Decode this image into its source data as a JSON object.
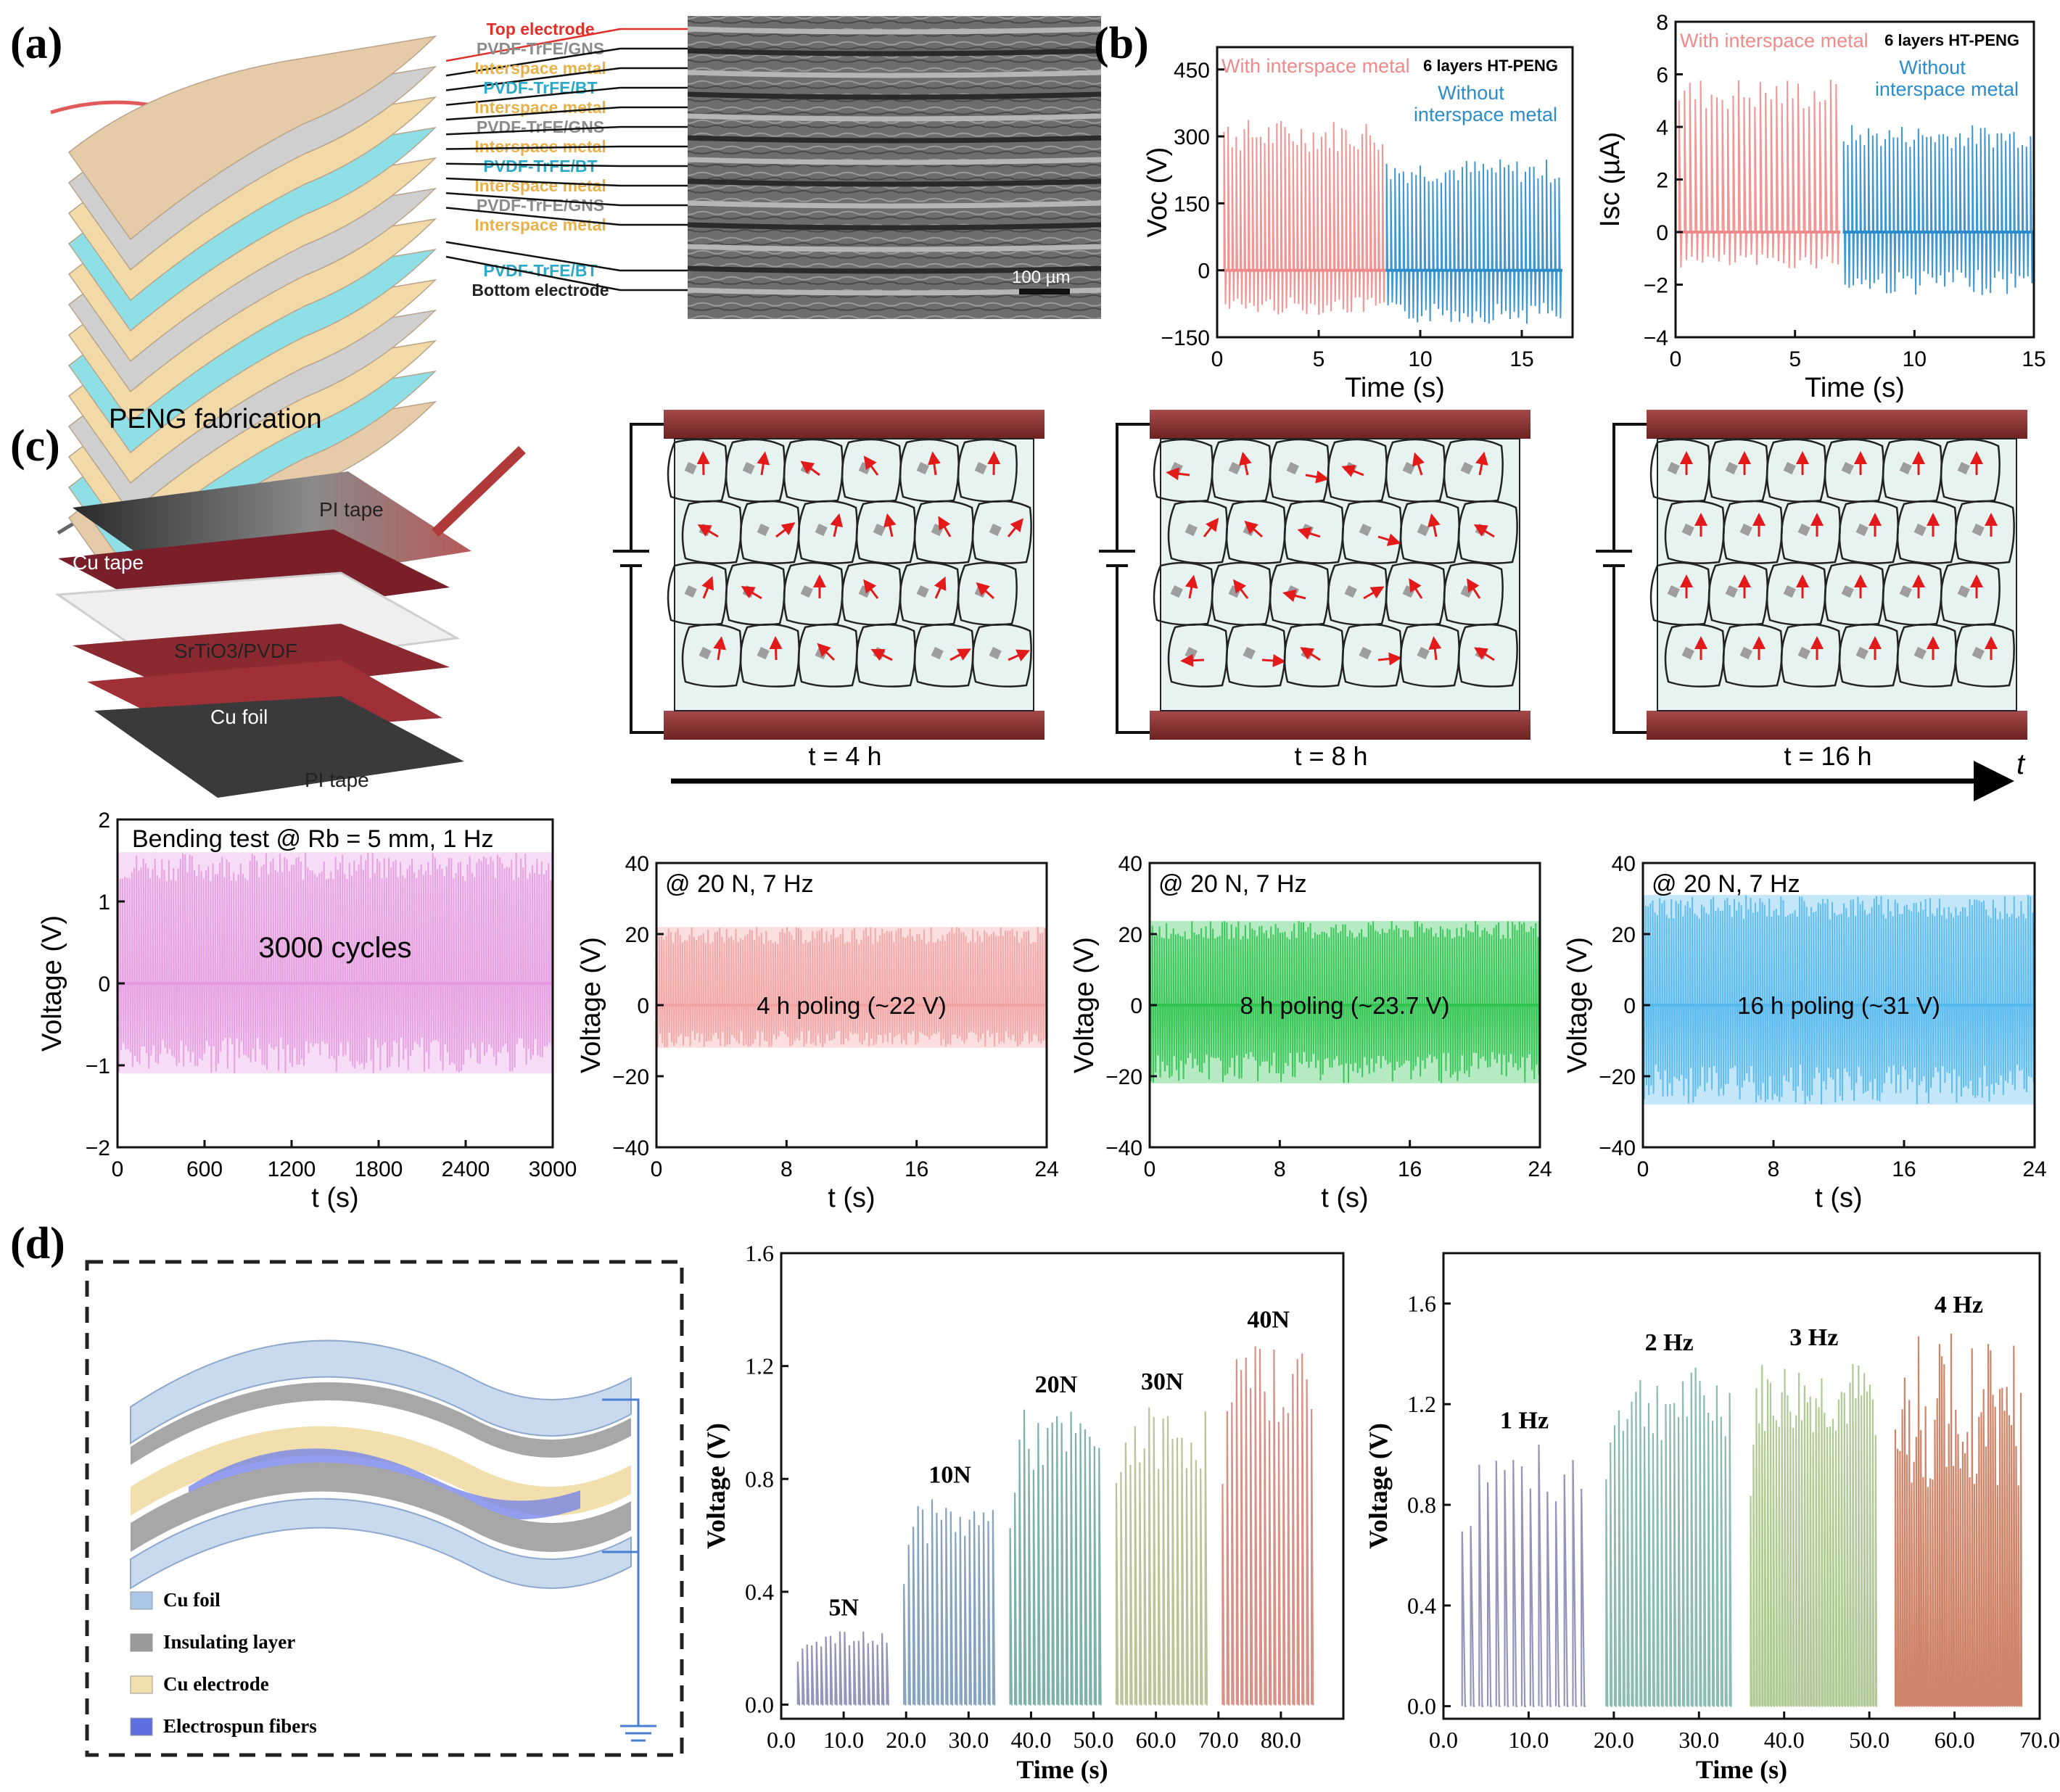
{
  "panels": {
    "a": {
      "tag": "(a)",
      "caption": "PENG fabrication",
      "layers": [
        {
          "text": "Top electrode",
          "color": "#e0302a"
        },
        {
          "text": "PVDF-TrFE/GNS",
          "color": "#8c8c8c"
        },
        {
          "text": "Interspace metal",
          "color": "#e8b24a"
        },
        {
          "text": "PVDF-TrFE/BT",
          "color": "#2aa9c9"
        },
        {
          "text": "Interspace metal",
          "color": "#e8b24a"
        },
        {
          "text": "PVDF-TrFE/GNS",
          "color": "#8c8c8c"
        },
        {
          "text": "Interspace metal",
          "color": "#e8b24a"
        },
        {
          "text": "PVDF-TrFE/BT",
          "color": "#2aa9c9"
        },
        {
          "text": "Interspace metal",
          "color": "#e8b24a"
        },
        {
          "text": "PVDF-TrFE/GNS",
          "color": "#8c8c8c"
        },
        {
          "text": "Interspace metal",
          "color": "#e8b24a"
        },
        {
          "text": "PVDF-TrFE/BT",
          "color": "#2aa9c9"
        },
        {
          "text": "Bottom electrode",
          "color": "#222222"
        }
      ],
      "scale_bar": "100 µm"
    },
    "b": {
      "tag": "(b)"
    },
    "c": {
      "tag": "(c)",
      "device_labels": [
        "PI tape",
        "Cu tape",
        "SrTiO3/PVDF",
        "Cu foil",
        "PI tape"
      ],
      "poling_times": [
        "t = 4 h",
        "t = 8 h",
        "t = 16 h"
      ],
      "time_axis": "t"
    },
    "d": {
      "tag": "(d)",
      "legend": [
        "Cu foil",
        "Insulating layer",
        "Cu electrode",
        "Electrospun fibers"
      ],
      "legend_colors": [
        "#a9c6e8",
        "#9a9a9a",
        "#f1dfae",
        "#5f6fe0"
      ]
    }
  },
  "chart_data": [
    {
      "id": "b1",
      "type": "line",
      "title": "6 layers HT-PENG",
      "xlabel": "Time (s)",
      "ylabel": "Voc (V)",
      "xlim": [
        0,
        17.5
      ],
      "ylim": [
        -150,
        500
      ],
      "xticks": [
        0,
        5,
        10,
        15
      ],
      "yticks": [
        -150,
        0,
        150,
        300,
        450
      ],
      "series": [
        {
          "name": "With interspace metal",
          "color": "#f08a8a",
          "t_start": 0.3,
          "t_end": 8.3,
          "peak_max": 340,
          "peak_min": -100,
          "cycles": 40
        },
        {
          "name": "Without interspace metal",
          "color": "#2b8ccc",
          "t_start": 8.3,
          "t_end": 17,
          "peak_max": 250,
          "peak_min": -120,
          "cycles": 42
        }
      ],
      "annotations": [
        "With interspace metal",
        "Without",
        "interspace metal"
      ]
    },
    {
      "id": "b2",
      "type": "line",
      "title": "6 layers HT-PENG",
      "xlabel": "Time (s)",
      "ylabel": "Isc (µA)",
      "xlim": [
        0,
        15
      ],
      "ylim": [
        -4,
        8
      ],
      "xticks": [
        0,
        5,
        10,
        15
      ],
      "yticks": [
        -4,
        -2,
        0,
        2,
        4,
        6,
        8
      ],
      "series": [
        {
          "name": "With interspace metal",
          "color": "#f08a8a",
          "t_start": 0.1,
          "t_end": 6.9,
          "peak_max": 5.9,
          "peak_min": -1.4,
          "cycles": 30
        },
        {
          "name": "Without interspace metal",
          "color": "#2b8ccc",
          "t_start": 7.0,
          "t_end": 15,
          "peak_max": 4.1,
          "peak_min": -2.4,
          "cycles": 46
        }
      ],
      "annotations": [
        "With interspace metal",
        "Without",
        "interspace metal"
      ]
    },
    {
      "id": "c1",
      "type": "line",
      "title": "Bending test @ Rb = 5 mm, 1 Hz",
      "xlabel": "t (s)",
      "ylabel": "Voltage (V)",
      "xlim": [
        0,
        3000
      ],
      "ylim": [
        -2,
        2
      ],
      "xticks": [
        0,
        600,
        1200,
        1800,
        2400,
        3000
      ],
      "yticks": [
        -2,
        -1,
        0,
        1,
        2
      ],
      "series": [
        {
          "name": "3000 cycles",
          "color": "#e69be0",
          "t_start": 0,
          "t_end": 3000,
          "peak_max": 1.6,
          "peak_min": -1.1,
          "cycles": 3000
        }
      ],
      "annotations": [
        "3000 cycles"
      ]
    },
    {
      "id": "c2",
      "type": "line",
      "title": "@ 20 N, 7 Hz",
      "xlabel": "t (s)",
      "ylabel": "Voltage (V)",
      "xlim": [
        0,
        24
      ],
      "ylim": [
        -40,
        40
      ],
      "xticks": [
        0,
        8,
        16,
        24
      ],
      "yticks": [
        -40,
        -20,
        0,
        20,
        40
      ],
      "series": [
        {
          "name": "4 h poling (~22 V)",
          "color": "#f3a3a3",
          "t_start": 0,
          "t_end": 24,
          "peak_max": 22,
          "peak_min": -12,
          "cycles": 168
        }
      ],
      "annotations": [
        "4 h poling (~22 V)"
      ]
    },
    {
      "id": "c3",
      "type": "line",
      "title": "@ 20 N, 7 Hz",
      "xlabel": "t (s)",
      "ylabel": "Voltage (V)",
      "xlim": [
        0,
        24
      ],
      "ylim": [
        -40,
        40
      ],
      "xticks": [
        0,
        8,
        16,
        24
      ],
      "yticks": [
        -40,
        -20,
        0,
        20,
        40
      ],
      "series": [
        {
          "name": "8 h poling (~23.7 V)",
          "color": "#2fc44f",
          "t_start": 0,
          "t_end": 24,
          "peak_max": 23.7,
          "peak_min": -22,
          "cycles": 168
        }
      ],
      "annotations": [
        "8 h poling (~23.7 V)"
      ]
    },
    {
      "id": "c4",
      "type": "line",
      "title": "@ 20 N, 7 Hz",
      "xlabel": "t (s)",
      "ylabel": "Voltage (V)",
      "xlim": [
        0,
        24
      ],
      "ylim": [
        -40,
        40
      ],
      "xticks": [
        0,
        8,
        16,
        24
      ],
      "yticks": [
        -40,
        -20,
        0,
        20,
        40
      ],
      "series": [
        {
          "name": "16 h poling (~31 V)",
          "color": "#55b8ee",
          "t_start": 0,
          "t_end": 24,
          "peak_max": 31,
          "peak_min": -28,
          "cycles": 168
        }
      ],
      "annotations": [
        "16 h poling (~31 V)"
      ]
    },
    {
      "id": "d1",
      "type": "line",
      "title": "",
      "xlabel": "Time (s)",
      "ylabel": "Voltage (V)",
      "xlim": [
        0,
        90
      ],
      "ylim": [
        -0.05,
        1.6
      ],
      "xticks": [
        0,
        10,
        20,
        30,
        40,
        50,
        60,
        70,
        80
      ],
      "yticks": [
        0.0,
        0.4,
        0.8,
        1.2,
        1.6
      ],
      "series": [
        {
          "name": "5N",
          "color": "#8a8ab4",
          "t_start": 2.5,
          "t_end": 17.5,
          "peak_max": 0.26,
          "peak_min": 0.0,
          "cycles": 20
        },
        {
          "name": "10N",
          "color": "#7a9ab8",
          "t_start": 19.5,
          "t_end": 34.5,
          "peak_max": 0.73,
          "peak_min": 0.0,
          "cycles": 20
        },
        {
          "name": "20N",
          "color": "#6fa8a0",
          "t_start": 36.5,
          "t_end": 51.5,
          "peak_max": 1.05,
          "peak_min": 0.0,
          "cycles": 20
        },
        {
          "name": "30N",
          "color": "#b6bc8e",
          "t_start": 53.5,
          "t_end": 68.5,
          "peak_max": 1.06,
          "peak_min": 0.0,
          "cycles": 20
        },
        {
          "name": "40N",
          "color": "#d4857a",
          "t_start": 70.5,
          "t_end": 85.5,
          "peak_max": 1.28,
          "peak_min": 0.0,
          "cycles": 20
        }
      ],
      "annotations": [
        "5N",
        "10N",
        "20N",
        "30N",
        "40N"
      ]
    },
    {
      "id": "d2",
      "type": "line",
      "title": "",
      "xlabel": "Time (s)",
      "ylabel": "Voltage (V)",
      "xlim": [
        0,
        70
      ],
      "ylim": [
        -0.05,
        1.8
      ],
      "xticks": [
        0,
        10,
        20,
        30,
        40,
        50,
        60,
        70
      ],
      "yticks": [
        0.0,
        0.4,
        0.8,
        1.2,
        1.6
      ],
      "series": [
        {
          "name": "1 Hz",
          "color": "#8a8ab4",
          "t_start": 2,
          "t_end": 17,
          "peak_max": 1.04,
          "peak_min": 0.0,
          "cycles": 15
        },
        {
          "name": "2 Hz",
          "color": "#7fb5a8",
          "t_start": 19,
          "t_end": 34,
          "peak_max": 1.35,
          "peak_min": 0.0,
          "cycles": 30
        },
        {
          "name": "3 Hz",
          "color": "#a7c48a",
          "t_start": 36,
          "t_end": 51,
          "peak_max": 1.37,
          "peak_min": 0.0,
          "cycles": 45
        },
        {
          "name": "4 Hz",
          "color": "#c9785a",
          "t_start": 53,
          "t_end": 68,
          "peak_max": 1.5,
          "peak_min": 0.0,
          "cycles": 60
        }
      ],
      "annotations": [
        "1 Hz",
        "2 Hz",
        "3 Hz",
        "4 Hz"
      ]
    }
  ]
}
